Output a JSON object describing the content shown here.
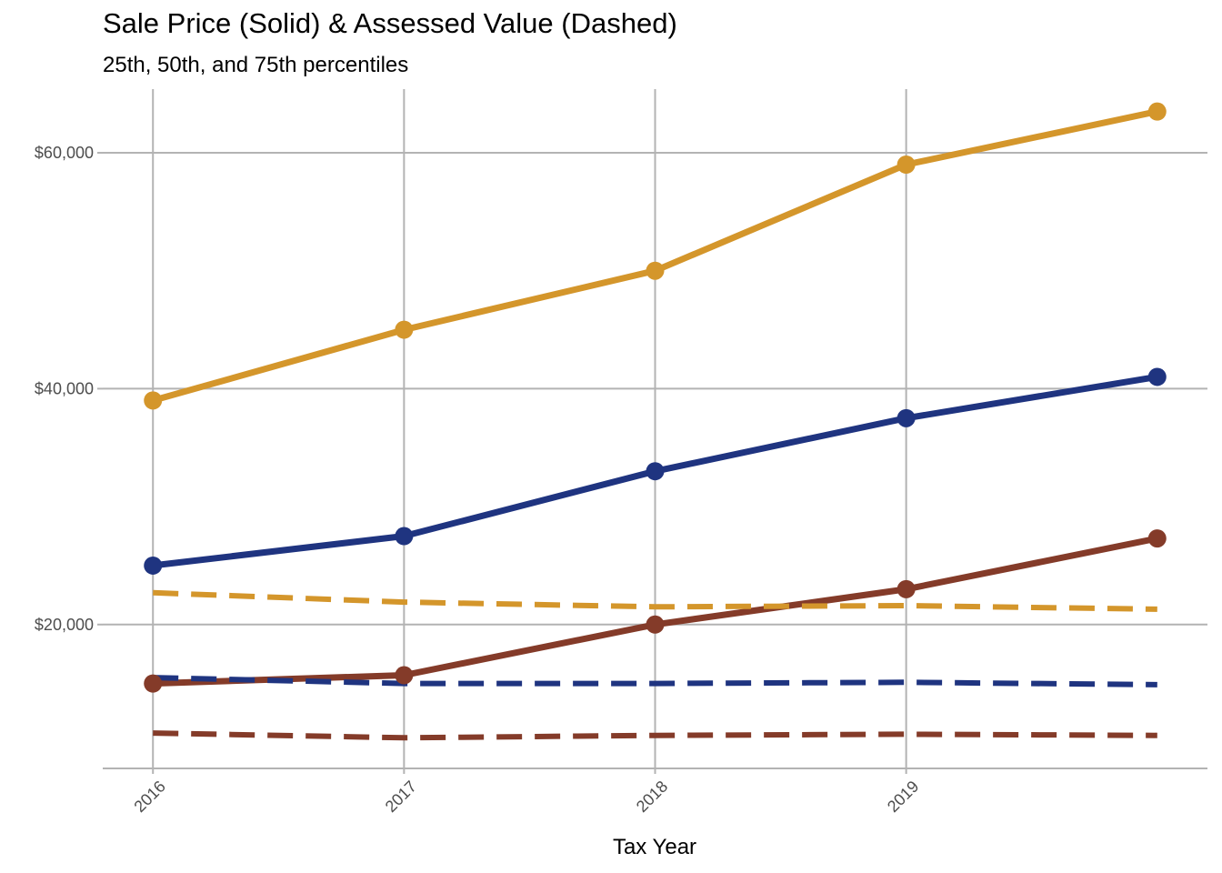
{
  "chart_data": {
    "type": "line",
    "title": "Sale Price (Solid) & Assessed Value (Dashed)",
    "subtitle": "25th, 50th, and 75th percentiles",
    "xlabel": "Tax Year",
    "ylabel": "",
    "x": [
      2016,
      2017,
      2018,
      2019,
      2020
    ],
    "x_tick_labels": [
      "2016",
      "2017",
      "2018",
      "2019"
    ],
    "x_tick_values": [
      2016,
      2017,
      2018,
      2019
    ],
    "y_tick_values": [
      20000,
      40000,
      60000
    ],
    "y_tick_labels": [
      "$20,000",
      "$40,000",
      "$60,000"
    ],
    "xlim": [
      2015.8,
      2020.2
    ],
    "ylim": [
      7800,
      65400
    ],
    "grid": true,
    "legend": "none",
    "series": [
      {
        "quantile": "75th",
        "measure": "sale price",
        "style": "solid",
        "color": "#D4962B",
        "values": [
          39000,
          45000,
          50000,
          59000,
          63500
        ]
      },
      {
        "quantile": "50th",
        "measure": "sale price",
        "style": "solid",
        "color": "#1F3480",
        "values": [
          25000,
          27500,
          33000,
          37500,
          41000
        ]
      },
      {
        "quantile": "25th",
        "measure": "sale price",
        "style": "solid",
        "color": "#843B29",
        "values": [
          15000,
          15700,
          20000,
          23000,
          27300
        ]
      },
      {
        "quantile": "75th",
        "measure": "assessed value",
        "style": "dashed",
        "color": "#D4962B",
        "values": [
          22700,
          21900,
          21500,
          21600,
          21300
        ]
      },
      {
        "quantile": "50th",
        "measure": "assessed value",
        "style": "dashed",
        "color": "#1F3480",
        "values": [
          15500,
          15000,
          15000,
          15100,
          14900
        ]
      },
      {
        "quantile": "25th",
        "measure": "assessed value",
        "style": "dashed",
        "color": "#843B29",
        "values": [
          10800,
          10400,
          10600,
          10700,
          10600
        ]
      }
    ]
  }
}
